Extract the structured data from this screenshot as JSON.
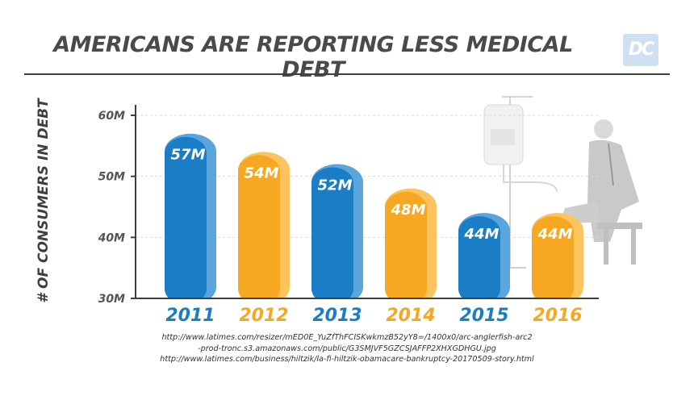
{
  "header": {
    "title": "AMERICANS ARE REPORTING LESS MEDICAL DEBT",
    "logo_text": "DC"
  },
  "source_lines": [
    "http://www.latimes.com/resizer/mED0E_YuZfThFCISKwkmzB52yY8=/1400x0/arc-anglerfish-arc2",
    "-prod-tronc.s3.amazonaws.com/public/G3SMJVF5GZCSJAFFP2XHXGDHGU.jpg",
    "http://www.latimes.com/business/hiltzik/la-fi-hiltzik-obamacare-bankruptcy-20170509-story.html"
  ],
  "chart_data": {
    "type": "bar",
    "title": "AMERICANS ARE REPORTING LESS MEDICAL DEBT",
    "ylabel": "# OF CONSUMERS IN DEBT",
    "xlabel": "",
    "categories": [
      "2011",
      "2012",
      "2013",
      "2014",
      "2015",
      "2016"
    ],
    "values": [
      57,
      54,
      52,
      48,
      44,
      44
    ],
    "data_labels": [
      "57M",
      "54M",
      "52M",
      "48M",
      "44M",
      "44M"
    ],
    "ylim": [
      30,
      60
    ],
    "y_ticks": [
      30,
      40,
      50,
      60
    ],
    "y_tick_labels": [
      "30M",
      "40M",
      "50M",
      "60M"
    ],
    "grid": true,
    "colors": {
      "blue": "#1a7dc6",
      "blue_light": "#5aa6dc",
      "orange": "#f7a823",
      "orange_light": "#fcc45e",
      "axis": "#3f3f3f",
      "grid": "#d9d9d9"
    },
    "bar_colors": [
      "blue",
      "orange",
      "blue",
      "orange",
      "blue",
      "orange"
    ]
  }
}
